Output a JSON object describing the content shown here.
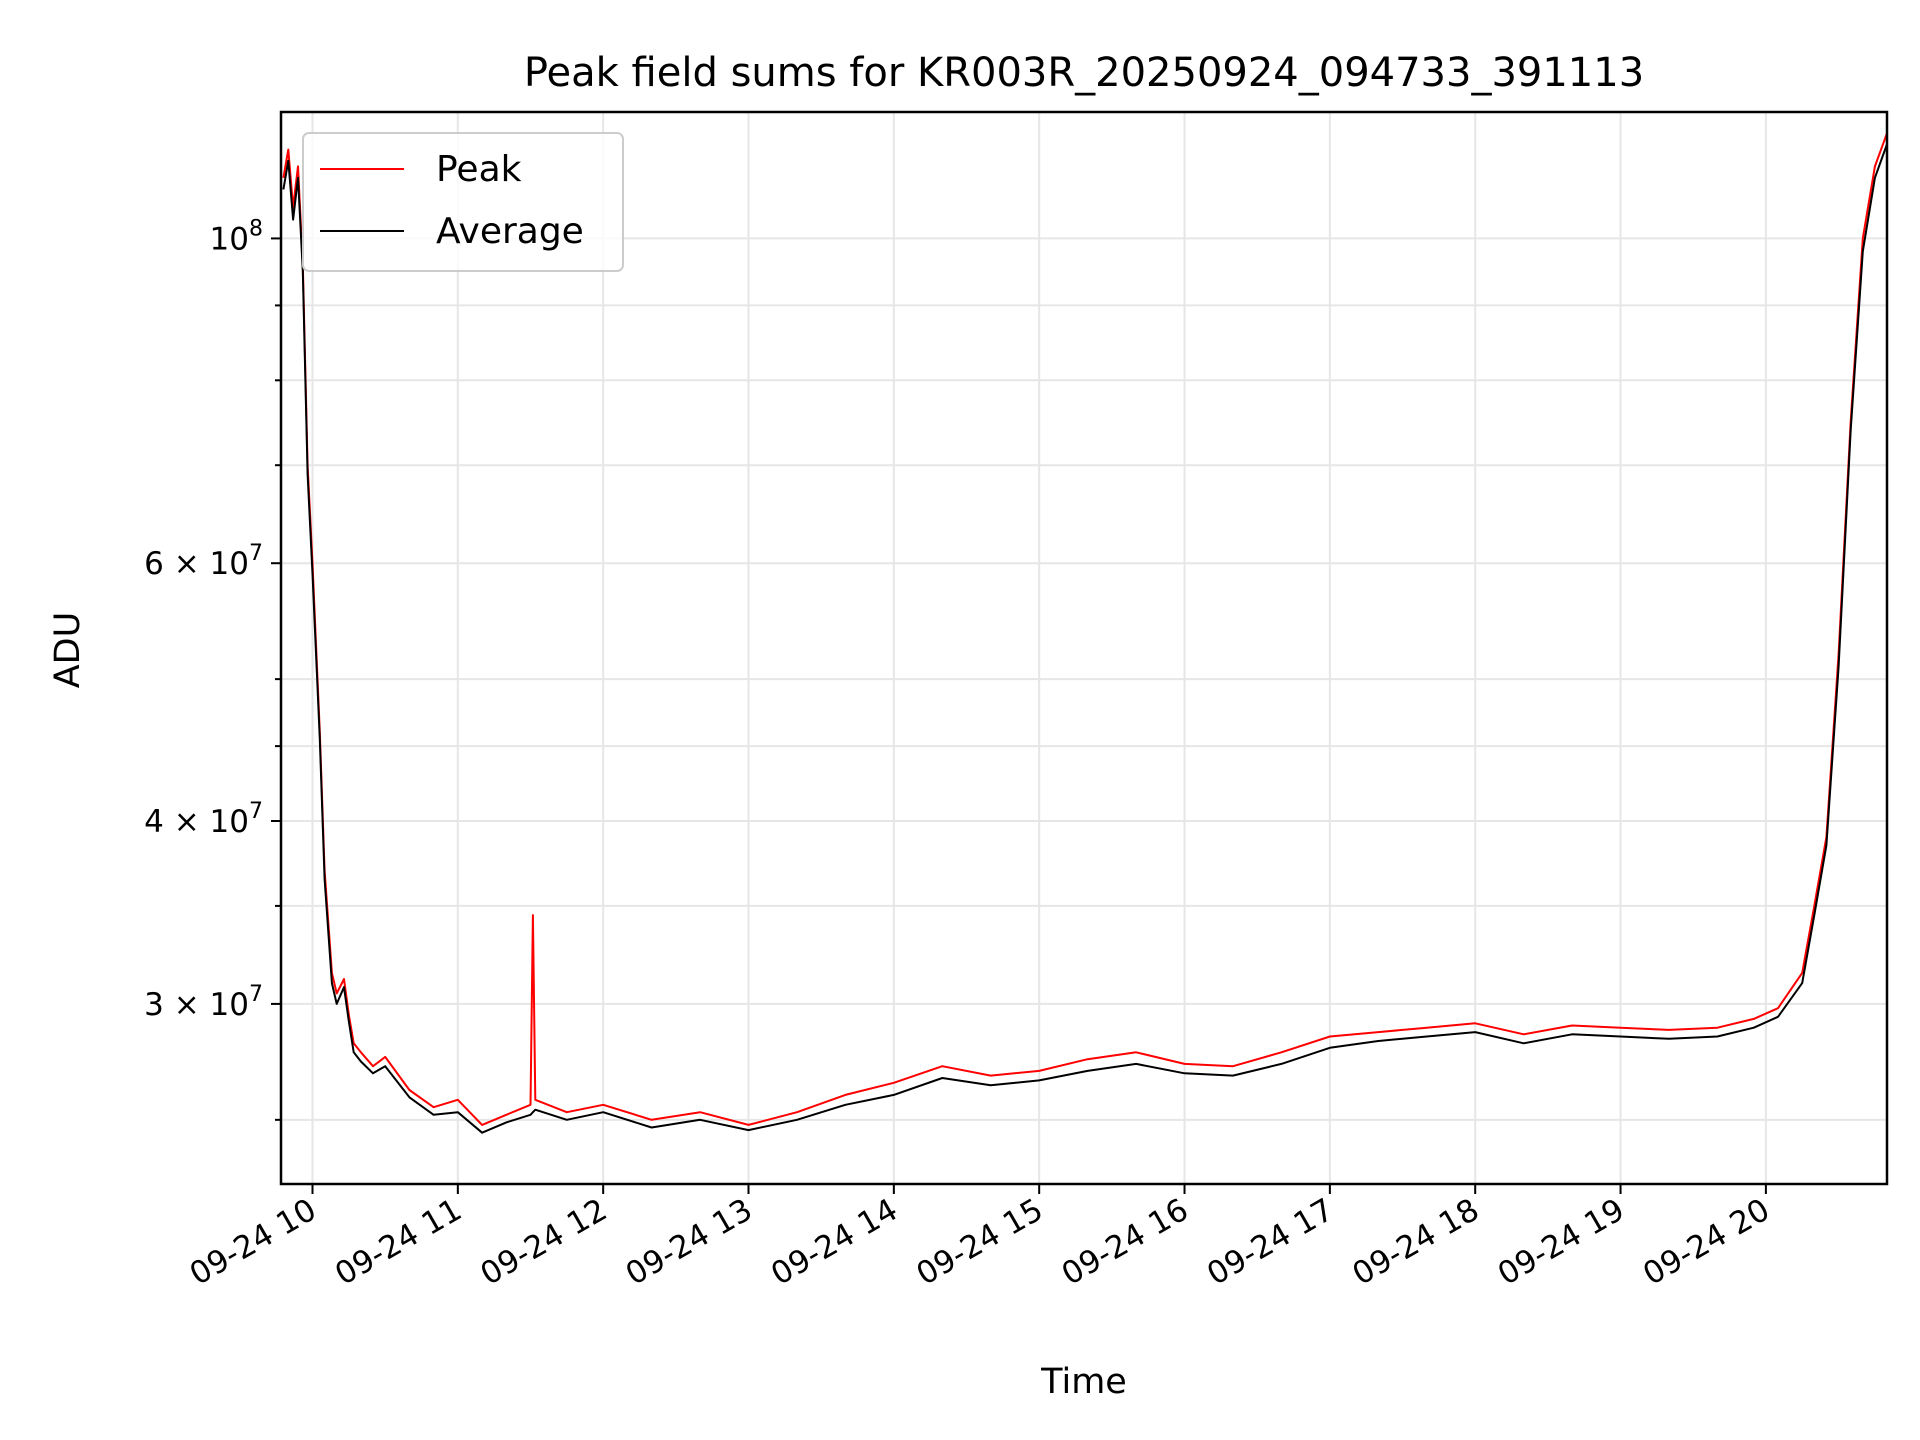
{
  "chart_data": {
    "type": "line",
    "title": "Peak field sums for KR003R_20250924_094733_391113",
    "xlabel": "Time",
    "ylabel": "ADU",
    "y_scale": "log",
    "xlim": [
      "2025-09-24 09:47",
      "2025-09-24 20:50"
    ],
    "ylim": [
      22600000,
      122000000
    ],
    "grid": true,
    "legend_position": "top-left",
    "x_tick_labels": [
      "09-24 10",
      "09-24 11",
      "09-24 12",
      "09-24 13",
      "09-24 14",
      "09-24 15",
      "09-24 16",
      "09-24 17",
      "09-24 18",
      "09-24 19",
      "09-24 20"
    ],
    "y_tick_labels": [
      {
        "value": 100000000,
        "base": "10",
        "exp": "8",
        "prefix": ""
      },
      {
        "value": 60000000,
        "base": "10",
        "exp": "7",
        "prefix": "6 × "
      },
      {
        "value": 40000000,
        "base": "10",
        "exp": "7",
        "prefix": "4 × "
      },
      {
        "value": 30000000,
        "base": "10",
        "exp": "7",
        "prefix": "3 × "
      }
    ],
    "series": [
      {
        "name": "Peak",
        "color": "#ff0000",
        "x": [
          "2025-09-24 09:48",
          "2025-09-24 09:50",
          "2025-09-24 09:52",
          "2025-09-24 09:54",
          "2025-09-24 09:56",
          "2025-09-24 09:58",
          "2025-09-24 10:00",
          "2025-09-24 10:03",
          "2025-09-24 10:05",
          "2025-09-24 10:08",
          "2025-09-24 10:10",
          "2025-09-24 10:13",
          "2025-09-24 10:15",
          "2025-09-24 10:17",
          "2025-09-24 10:20",
          "2025-09-24 10:25",
          "2025-09-24 10:30",
          "2025-09-24 10:40",
          "2025-09-24 10:50",
          "2025-09-24 11:00",
          "2025-09-24 11:10",
          "2025-09-24 11:20",
          "2025-09-24 11:30",
          "2025-09-24 11:31",
          "2025-09-24 11:32",
          "2025-09-24 11:45",
          "2025-09-24 12:00",
          "2025-09-24 12:20",
          "2025-09-24 12:40",
          "2025-09-24 13:00",
          "2025-09-24 13:20",
          "2025-09-24 13:40",
          "2025-09-24 14:00",
          "2025-09-24 14:20",
          "2025-09-24 14:40",
          "2025-09-24 15:00",
          "2025-09-24 15:20",
          "2025-09-24 15:40",
          "2025-09-24 16:00",
          "2025-09-24 16:20",
          "2025-09-24 16:40",
          "2025-09-24 17:00",
          "2025-09-24 17:20",
          "2025-09-24 17:40",
          "2025-09-24 18:00",
          "2025-09-24 18:20",
          "2025-09-24 18:40",
          "2025-09-24 19:00",
          "2025-09-24 19:20",
          "2025-09-24 19:40",
          "2025-09-24 19:55",
          "2025-09-24 20:05",
          "2025-09-24 20:15",
          "2025-09-24 20:20",
          "2025-09-24 20:25",
          "2025-09-24 20:30",
          "2025-09-24 20:35",
          "2025-09-24 20:40",
          "2025-09-24 20:45",
          "2025-09-24 20:50"
        ],
        "values": [
          110000000,
          115000000,
          105000000,
          112000000,
          96000000,
          70000000,
          60000000,
          46000000,
          37000000,
          31500000,
          30500000,
          31200000,
          29500000,
          28200000,
          27800000,
          27200000,
          27600000,
          26200000,
          25500000,
          25800000,
          24800000,
          25200000,
          25600000,
          34500000,
          25800000,
          25300000,
          25600000,
          25000000,
          25300000,
          24800000,
          25300000,
          26000000,
          26500000,
          27200000,
          26800000,
          27000000,
          27500000,
          27800000,
          27300000,
          27200000,
          27800000,
          28500000,
          28700000,
          28900000,
          29100000,
          28600000,
          29000000,
          28900000,
          28800000,
          28900000,
          29300000,
          29800000,
          31500000,
          35000000,
          39000000,
          52000000,
          75000000,
          100000000,
          112000000,
          118000000
        ]
      },
      {
        "name": "Average",
        "color": "#000000",
        "x": [
          "2025-09-24 09:48",
          "2025-09-24 09:50",
          "2025-09-24 09:52",
          "2025-09-24 09:54",
          "2025-09-24 09:56",
          "2025-09-24 09:58",
          "2025-09-24 10:00",
          "2025-09-24 10:03",
          "2025-09-24 10:05",
          "2025-09-24 10:08",
          "2025-09-24 10:10",
          "2025-09-24 10:13",
          "2025-09-24 10:15",
          "2025-09-24 10:17",
          "2025-09-24 10:20",
          "2025-09-24 10:25",
          "2025-09-24 10:30",
          "2025-09-24 10:40",
          "2025-09-24 10:50",
          "2025-09-24 11:00",
          "2025-09-24 11:10",
          "2025-09-24 11:20",
          "2025-09-24 11:30",
          "2025-09-24 11:31",
          "2025-09-24 11:32",
          "2025-09-24 11:45",
          "2025-09-24 12:00",
          "2025-09-24 12:20",
          "2025-09-24 12:40",
          "2025-09-24 13:00",
          "2025-09-24 13:20",
          "2025-09-24 13:40",
          "2025-09-24 14:00",
          "2025-09-24 14:20",
          "2025-09-24 14:40",
          "2025-09-24 15:00",
          "2025-09-24 15:20",
          "2025-09-24 15:40",
          "2025-09-24 16:00",
          "2025-09-24 16:20",
          "2025-09-24 16:40",
          "2025-09-24 17:00",
          "2025-09-24 17:20",
          "2025-09-24 17:40",
          "2025-09-24 18:00",
          "2025-09-24 18:20",
          "2025-09-24 18:40",
          "2025-09-24 19:00",
          "2025-09-24 19:20",
          "2025-09-24 19:40",
          "2025-09-24 19:55",
          "2025-09-24 20:05",
          "2025-09-24 20:15",
          "2025-09-24 20:20",
          "2025-09-24 20:25",
          "2025-09-24 20:30",
          "2025-09-24 20:35",
          "2025-09-24 20:40",
          "2025-09-24 20:45",
          "2025-09-24 20:50"
        ],
        "values": [
          108000000,
          113000000,
          103000000,
          110000000,
          95000000,
          69000000,
          59000000,
          45500000,
          36500000,
          31000000,
          30000000,
          30800000,
          29200000,
          27800000,
          27400000,
          26900000,
          27200000,
          25900000,
          25200000,
          25300000,
          24500000,
          24900000,
          25200000,
          25300000,
          25400000,
          25000000,
          25300000,
          24700000,
          25000000,
          24600000,
          25000000,
          25600000,
          26000000,
          26700000,
          26400000,
          26600000,
          27000000,
          27300000,
          26900000,
          26800000,
          27300000,
          28000000,
          28300000,
          28500000,
          28700000,
          28200000,
          28600000,
          28500000,
          28400000,
          28500000,
          28900000,
          29400000,
          31000000,
          34500000,
          38500000,
          51000000,
          74000000,
          98000000,
          110000000,
          116000000
        ]
      }
    ]
  }
}
